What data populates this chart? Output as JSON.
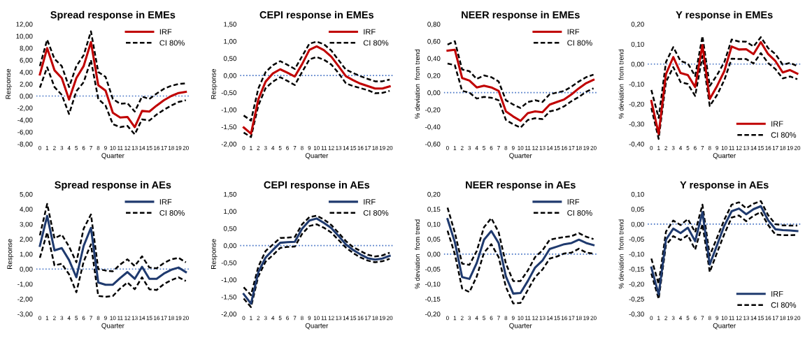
{
  "chart_data": [
    {
      "type": "line",
      "title": "Spread response in EMEs",
      "xlabel": "Quarter",
      "ylabel": "Response",
      "categories": [
        "0",
        "1",
        "2",
        "3",
        "4",
        "5",
        "6",
        "7",
        "8",
        "9",
        "10",
        "11",
        "12",
        "13",
        "14",
        "15",
        "16",
        "17",
        "18",
        "19",
        "20"
      ],
      "legend": "top right",
      "ylim": [
        -8,
        12
      ],
      "yticks": [
        {
          "value": -8,
          "label": "-8,00"
        },
        {
          "value": -6,
          "label": "-6,00"
        },
        {
          "value": -4,
          "label": "-4,00"
        },
        {
          "value": -2,
          "label": "-2,00"
        },
        {
          "value": 0,
          "label": "0,00"
        },
        {
          "value": 2,
          "label": "2,00"
        },
        {
          "value": 4,
          "label": "4,00"
        },
        {
          "value": 6,
          "label": "6,00"
        },
        {
          "value": 8,
          "label": "8,00"
        },
        {
          "value": 10,
          "label": "10,00"
        },
        {
          "value": 12,
          "label": "12,00"
        }
      ],
      "ref_lines": [
        {
          "axis": "y",
          "value": 0,
          "color": "#4472c4",
          "line_style": "dotted"
        }
      ],
      "series": [
        {
          "name": "IRF",
          "color": "#c00000",
          "line_style": "solid",
          "values": [
            3.6,
            8.0,
            4.3,
            3.0,
            -0.6,
            3.0,
            5.0,
            9.0,
            1.8,
            0.9,
            -2.8,
            -3.6,
            -3.5,
            -5.2,
            -2.5,
            -2.6,
            -1.6,
            -0.7,
            0.0,
            0.5,
            0.7
          ]
        },
        {
          "name": "CI 80%",
          "color": "#000000",
          "line_style": "dashed",
          "values": [
            5.0,
            9.4,
            6.2,
            5.0,
            1.5,
            5.0,
            6.8,
            10.8,
            4.0,
            3.2,
            -0.5,
            -1.3,
            -1.2,
            -2.6,
            -0.1,
            -0.5,
            0.4,
            1.2,
            1.7,
            2.0,
            2.1
          ]
        },
        {
          "color": "#000000",
          "line_style": "dashed",
          "values": [
            1.4,
            4.8,
            1.5,
            0.2,
            -3.0,
            0.8,
            2.3,
            6.0,
            -0.5,
            -1.6,
            -4.7,
            -5.2,
            -5.0,
            -6.4,
            -3.9,
            -4.1,
            -3.1,
            -2.3,
            -1.6,
            -1.0,
            -0.7
          ]
        }
      ]
    },
    {
      "type": "line",
      "title": "CEPI response in EMEs",
      "xlabel": "Quarter",
      "ylabel": "Response",
      "categories": [
        "0",
        "1",
        "2",
        "3",
        "4",
        "5",
        "6",
        "7",
        "8",
        "9",
        "10",
        "11",
        "12",
        "13",
        "14",
        "15",
        "16",
        "17",
        "18",
        "19",
        "20"
      ],
      "legend": "top right",
      "ylim": [
        -2,
        1.5
      ],
      "yticks": [
        {
          "value": -2,
          "label": "-2,00"
        },
        {
          "value": -1.5,
          "label": "-1,50"
        },
        {
          "value": -1,
          "label": "-1,00"
        },
        {
          "value": -0.5,
          "label": "-0,50"
        },
        {
          "value": 0,
          "label": "0,00"
        },
        {
          "value": 0.5,
          "label": "0,50"
        },
        {
          "value": 1,
          "label": "1,00"
        },
        {
          "value": 1.5,
          "label": "1,50"
        }
      ],
      "ref_lines": [
        {
          "axis": "y",
          "value": 0,
          "color": "#4472c4",
          "line_style": "dotted"
        }
      ],
      "series": [
        {
          "name": "IRF",
          "color": "#c00000",
          "line_style": "solid",
          "values": [
            -1.52,
            -1.7,
            -0.7,
            -0.18,
            0.06,
            0.18,
            0.08,
            -0.03,
            0.33,
            0.75,
            0.85,
            0.74,
            0.55,
            0.27,
            -0.02,
            -0.14,
            -0.24,
            -0.31,
            -0.38,
            -0.38,
            -0.32
          ]
        },
        {
          "name": "CI 80%",
          "color": "#000000",
          "line_style": "dashed",
          "values": [
            -1.17,
            -1.32,
            -0.38,
            0.1,
            0.3,
            0.42,
            0.31,
            0.19,
            0.56,
            0.93,
            0.99,
            0.91,
            0.73,
            0.45,
            0.17,
            0.07,
            -0.02,
            -0.1,
            -0.17,
            -0.17,
            -0.12
          ]
        },
        {
          "color": "#000000",
          "line_style": "dashed",
          "values": [
            -1.67,
            -1.8,
            -0.88,
            -0.37,
            -0.18,
            -0.05,
            -0.16,
            -0.28,
            0.1,
            0.47,
            0.54,
            0.46,
            0.32,
            0.07,
            -0.23,
            -0.31,
            -0.37,
            -0.43,
            -0.52,
            -0.51,
            -0.45
          ]
        }
      ]
    },
    {
      "type": "line",
      "title": "NEER response in EMEs",
      "xlabel": "Quarter",
      "ylabel": "% deviation  from trend",
      "categories": [
        "0",
        "1",
        "2",
        "3",
        "4",
        "5",
        "6",
        "7",
        "8",
        "9",
        "10",
        "11",
        "12",
        "13",
        "14",
        "15",
        "16",
        "17",
        "18",
        "19",
        "20"
      ],
      "legend": "top right",
      "ylim": [
        -0.6,
        0.8
      ],
      "yticks": [
        {
          "value": -0.6,
          "label": "-0,60"
        },
        {
          "value": -0.4,
          "label": "-0,40"
        },
        {
          "value": -0.2,
          "label": "-0,20"
        },
        {
          "value": 0,
          "label": "0,00"
        },
        {
          "value": 0.2,
          "label": "0,20"
        },
        {
          "value": 0.4,
          "label": "0,40"
        },
        {
          "value": 0.6,
          "label": "0,60"
        },
        {
          "value": 0.8,
          "label": "0,80"
        }
      ],
      "ref_lines": [
        {
          "axis": "y",
          "value": 0,
          "color": "#4472c4",
          "line_style": "dotted"
        }
      ],
      "series": [
        {
          "name": "IRF",
          "color": "#c00000",
          "line_style": "solid",
          "values": [
            0.49,
            0.5,
            0.17,
            0.14,
            0.06,
            0.08,
            0.06,
            0.02,
            -0.22,
            -0.28,
            -0.33,
            -0.24,
            -0.22,
            -0.23,
            -0.14,
            -0.11,
            -0.08,
            -0.02,
            0.05,
            0.11,
            0.15
          ]
        },
        {
          "name": "CI 80%",
          "color": "#000000",
          "line_style": "dashed",
          "values": [
            0.56,
            0.6,
            0.27,
            0.25,
            0.16,
            0.2,
            0.18,
            0.13,
            -0.09,
            -0.14,
            -0.18,
            -0.11,
            -0.09,
            -0.11,
            -0.02,
            0.0,
            0.02,
            0.07,
            0.13,
            0.18,
            0.21
          ]
        },
        {
          "color": "#000000",
          "line_style": "dashed",
          "values": [
            0.34,
            0.32,
            0.02,
            0.0,
            -0.07,
            -0.05,
            -0.06,
            -0.09,
            -0.32,
            -0.37,
            -0.41,
            -0.32,
            -0.3,
            -0.31,
            -0.22,
            -0.2,
            -0.16,
            -0.1,
            -0.05,
            0.01,
            0.05
          ]
        }
      ]
    },
    {
      "type": "line",
      "title": "Y response in EMEs",
      "xlabel": "Quarter",
      "ylabel": "% deviation  from trend",
      "categories": [
        "0",
        "1",
        "2",
        "3",
        "4",
        "5",
        "6",
        "7",
        "8",
        "9",
        "10",
        "11",
        "12",
        "13",
        "14",
        "15",
        "16",
        "17",
        "18",
        "19",
        "20"
      ],
      "legend": "bottom right",
      "ylim": [
        -0.4,
        0.2
      ],
      "yticks": [
        {
          "value": -0.4,
          "label": "-0,40"
        },
        {
          "value": -0.3,
          "label": "-0,30"
        },
        {
          "value": -0.2,
          "label": "-0,20"
        },
        {
          "value": -0.1,
          "label": "-0,10"
        },
        {
          "value": 0,
          "label": "0,00"
        },
        {
          "value": 0.1,
          "label": "0,10"
        },
        {
          "value": 0.2,
          "label": "0,20"
        }
      ],
      "ref_lines": [
        {
          "axis": "y",
          "value": 0,
          "color": "#4472c4",
          "line_style": "dotted"
        }
      ],
      "series": [
        {
          "name": "IRF",
          "color": "#c00000",
          "line_style": "solid",
          "values": [
            -0.185,
            -0.35,
            -0.05,
            0.035,
            -0.045,
            -0.055,
            -0.115,
            0.095,
            -0.175,
            -0.11,
            -0.035,
            0.088,
            0.073,
            0.074,
            0.05,
            0.11,
            0.05,
            0.015,
            -0.042,
            -0.03,
            -0.048
          ]
        },
        {
          "name": "CI 80%",
          "color": "#000000",
          "line_style": "dashed",
          "values": [
            -0.13,
            -0.27,
            0.01,
            0.085,
            0.015,
            0.003,
            -0.06,
            0.14,
            -0.11,
            -0.055,
            0.01,
            0.123,
            0.113,
            0.112,
            0.088,
            0.135,
            0.08,
            0.05,
            -0.003,
            0.006,
            -0.01
          ]
        },
        {
          "color": "#000000",
          "line_style": "dashed",
          "values": [
            -0.22,
            -0.375,
            -0.09,
            -0.015,
            -0.09,
            -0.1,
            -0.16,
            0.04,
            -0.21,
            -0.155,
            -0.08,
            0.027,
            0.025,
            0.025,
            0.003,
            0.055,
            0.005,
            -0.025,
            -0.072,
            -0.062,
            -0.076
          ]
        }
      ]
    },
    {
      "type": "line",
      "title": "Spread response in AEs",
      "xlabel": "Quarter",
      "ylabel": "Response",
      "categories": [
        "0",
        "1",
        "2",
        "3",
        "4",
        "5",
        "6",
        "7",
        "8",
        "9",
        "10",
        "11",
        "12",
        "13",
        "14",
        "15",
        "16",
        "17",
        "18",
        "19",
        "20"
      ],
      "legend": "top right",
      "ylim": [
        -3,
        5
      ],
      "yticks": [
        {
          "value": -3,
          "label": "-3,00"
        },
        {
          "value": -2,
          "label": "-2,00"
        },
        {
          "value": -1,
          "label": "-1,00"
        },
        {
          "value": 0,
          "label": "0,00"
        },
        {
          "value": 1,
          "label": "1,00"
        },
        {
          "value": 2,
          "label": "2,00"
        },
        {
          "value": 3,
          "label": "3,00"
        },
        {
          "value": 4,
          "label": "4,00"
        },
        {
          "value": 5,
          "label": "5,00"
        }
      ],
      "ref_lines": [
        {
          "axis": "y",
          "value": 0,
          "color": "#4472c4",
          "line_style": "dotted"
        }
      ],
      "series": [
        {
          "name": "IRF",
          "color": "#1f3a6e",
          "line_style": "solid",
          "values": [
            1.55,
            3.55,
            1.25,
            1.4,
            0.6,
            -0.55,
            1.55,
            2.75,
            -0.9,
            -1.05,
            -1.05,
            -0.6,
            -0.2,
            -0.65,
            0.15,
            -0.65,
            -0.65,
            -0.3,
            -0.05,
            0.1,
            -0.2
          ]
        },
        {
          "name": "CI 80%",
          "color": "#000000",
          "line_style": "dashed",
          "values": [
            2.25,
            4.35,
            2.05,
            2.3,
            1.5,
            0.45,
            2.7,
            3.65,
            0.0,
            -0.1,
            -0.15,
            0.3,
            0.65,
            0.2,
            0.85,
            0.1,
            0.05,
            0.4,
            0.65,
            0.75,
            0.45
          ]
        },
        {
          "color": "#000000",
          "line_style": "dashed",
          "values": [
            0.75,
            2.45,
            0.25,
            0.35,
            -0.35,
            -1.55,
            0.5,
            1.65,
            -1.8,
            -1.85,
            -1.8,
            -1.3,
            -0.9,
            -1.35,
            -0.55,
            -1.35,
            -1.4,
            -1.0,
            -0.75,
            -0.55,
            -0.8
          ]
        }
      ]
    },
    {
      "type": "line",
      "title": "CEPI response in AEs",
      "xlabel": "Quarter",
      "ylabel": "Response",
      "categories": [
        "0",
        "1",
        "2",
        "3",
        "4",
        "5",
        "6",
        "7",
        "8",
        "9",
        "10",
        "11",
        "12",
        "13",
        "14",
        "15",
        "16",
        "17",
        "18",
        "19",
        "20"
      ],
      "legend": "top right",
      "ylim": [
        -2,
        1.5
      ],
      "yticks": [
        {
          "value": -2,
          "label": "-2,00"
        },
        {
          "value": -1.5,
          "label": "-1,50"
        },
        {
          "value": -1,
          "label": "-1,00"
        },
        {
          "value": -0.5,
          "label": "-0,50"
        },
        {
          "value": 0,
          "label": "0,00"
        },
        {
          "value": 0.5,
          "label": "0,50"
        },
        {
          "value": 1,
          "label": "1,00"
        },
        {
          "value": 1.5,
          "label": "1,50"
        }
      ],
      "ref_lines": [
        {
          "axis": "y",
          "value": 0,
          "color": "#4472c4",
          "line_style": "dotted"
        }
      ],
      "series": [
        {
          "name": "IRF",
          "color": "#1f3a6e",
          "line_style": "solid",
          "values": [
            -1.42,
            -1.7,
            -0.78,
            -0.35,
            -0.13,
            0.08,
            0.1,
            0.11,
            0.49,
            0.73,
            0.79,
            0.66,
            0.51,
            0.28,
            0.03,
            -0.13,
            -0.26,
            -0.37,
            -0.41,
            -0.38,
            -0.3
          ]
        },
        {
          "name": "CI 80%",
          "color": "#000000",
          "line_style": "dashed",
          "values": [
            -1.22,
            -1.45,
            -0.62,
            -0.16,
            0.03,
            0.22,
            0.23,
            0.25,
            0.62,
            0.83,
            0.87,
            0.76,
            0.6,
            0.37,
            0.13,
            -0.05,
            -0.16,
            -0.27,
            -0.32,
            -0.29,
            -0.21
          ]
        },
        {
          "color": "#000000",
          "line_style": "dashed",
          "values": [
            -1.55,
            -1.8,
            -0.9,
            -0.47,
            -0.28,
            -0.07,
            -0.04,
            -0.03,
            0.34,
            0.57,
            0.62,
            0.52,
            0.38,
            0.16,
            -0.06,
            -0.22,
            -0.35,
            -0.44,
            -0.49,
            -0.46,
            -0.39
          ]
        }
      ]
    },
    {
      "type": "line",
      "title": "NEER response in AEs",
      "xlabel": "Quarter",
      "ylabel": "% deviation  from trend",
      "categories": [
        "0",
        "1",
        "2",
        "3",
        "4",
        "5",
        "6",
        "7",
        "8",
        "9",
        "10",
        "11",
        "12",
        "13",
        "14",
        "15",
        "16",
        "17",
        "18",
        "19",
        "20"
      ],
      "legend": "top right",
      "ylim": [
        -0.2,
        0.2
      ],
      "yticks": [
        {
          "value": -0.2,
          "label": "-0,20"
        },
        {
          "value": -0.15,
          "label": "-0,15"
        },
        {
          "value": -0.1,
          "label": "-0,10"
        },
        {
          "value": -0.05,
          "label": "-0,05"
        },
        {
          "value": 0,
          "label": "0,00"
        },
        {
          "value": 0.05,
          "label": "0,05"
        },
        {
          "value": 0.1,
          "label": "0,10"
        },
        {
          "value": 0.15,
          "label": "0,15"
        },
        {
          "value": 0.2,
          "label": "0,20"
        }
      ],
      "ref_lines": [
        {
          "axis": "y",
          "value": 0,
          "color": "#4472c4",
          "line_style": "dotted"
        }
      ],
      "series": [
        {
          "name": "IRF",
          "color": "#1f3a6e",
          "line_style": "solid",
          "values": [
            0.117,
            0.04,
            -0.077,
            -0.083,
            -0.03,
            0.048,
            0.077,
            0.037,
            -0.075,
            -0.132,
            -0.13,
            -0.09,
            -0.045,
            -0.022,
            0.017,
            0.025,
            0.033,
            0.037,
            0.048,
            0.037,
            0.03
          ]
        },
        {
          "name": "CI 80%",
          "color": "#000000",
          "line_style": "dashed",
          "values": [
            0.155,
            0.072,
            -0.032,
            -0.036,
            0.01,
            0.09,
            0.12,
            0.073,
            -0.032,
            -0.09,
            -0.09,
            -0.055,
            -0.01,
            0.012,
            0.048,
            0.053,
            0.057,
            0.06,
            0.07,
            0.058,
            0.05
          ]
        },
        {
          "color": "#000000",
          "line_style": "dashed",
          "values": [
            0.078,
            0.0,
            -0.115,
            -0.127,
            -0.075,
            0.005,
            0.033,
            -0.01,
            -0.11,
            -0.165,
            -0.163,
            -0.12,
            -0.077,
            -0.052,
            -0.015,
            -0.008,
            0.002,
            0.005,
            0.018,
            0.005,
            0.001
          ]
        }
      ]
    },
    {
      "type": "line",
      "title": "Y response in AEs",
      "xlabel": "Quarter",
      "ylabel": "% deviation  from trend",
      "categories": [
        "0",
        "1",
        "2",
        "3",
        "4",
        "5",
        "6",
        "7",
        "8",
        "9",
        "10",
        "11",
        "12",
        "13",
        "14",
        "15",
        "16",
        "17",
        "18",
        "19",
        "20"
      ],
      "legend": "bottom right",
      "ylim": [
        -0.3,
        0.1
      ],
      "yticks": [
        {
          "value": -0.3,
          "label": "-0,30"
        },
        {
          "value": -0.25,
          "label": "-0,25"
        },
        {
          "value": -0.2,
          "label": "-0,20"
        },
        {
          "value": -0.15,
          "label": "-0,15"
        },
        {
          "value": -0.1,
          "label": "-0,10"
        },
        {
          "value": -0.05,
          "label": "-0,05"
        },
        {
          "value": 0,
          "label": "0,00"
        },
        {
          "value": 0.05,
          "label": "0,05"
        },
        {
          "value": 0.1,
          "label": "0,10"
        }
      ],
      "ref_lines": [
        {
          "axis": "y",
          "value": 0,
          "color": "#4472c4",
          "line_style": "dotted"
        }
      ],
      "series": [
        {
          "name": "IRF",
          "color": "#1f3a6e",
          "line_style": "solid",
          "values": [
            -0.145,
            -0.235,
            -0.052,
            -0.015,
            -0.03,
            -0.012,
            -0.057,
            0.04,
            -0.135,
            -0.07,
            -0.005,
            0.043,
            0.052,
            0.033,
            0.05,
            0.06,
            0.013,
            -0.017,
            -0.02,
            -0.021,
            -0.023
          ]
        },
        {
          "name": "CI 80%",
          "color": "#000000",
          "line_style": "dashed",
          "values": [
            -0.115,
            -0.2,
            -0.025,
            0.012,
            -0.003,
            0.017,
            -0.027,
            0.065,
            -0.105,
            -0.045,
            0.015,
            0.065,
            0.073,
            0.053,
            0.068,
            0.077,
            0.03,
            0.0,
            -0.004,
            -0.005,
            -0.005
          ]
        },
        {
          "color": "#000000",
          "line_style": "dashed",
          "values": [
            -0.165,
            -0.25,
            -0.07,
            -0.04,
            -0.053,
            -0.037,
            -0.085,
            0.0,
            -0.16,
            -0.095,
            -0.033,
            0.022,
            0.029,
            0.01,
            0.028,
            0.04,
            -0.003,
            -0.035,
            -0.037,
            -0.037,
            -0.036
          ]
        }
      ]
    }
  ]
}
